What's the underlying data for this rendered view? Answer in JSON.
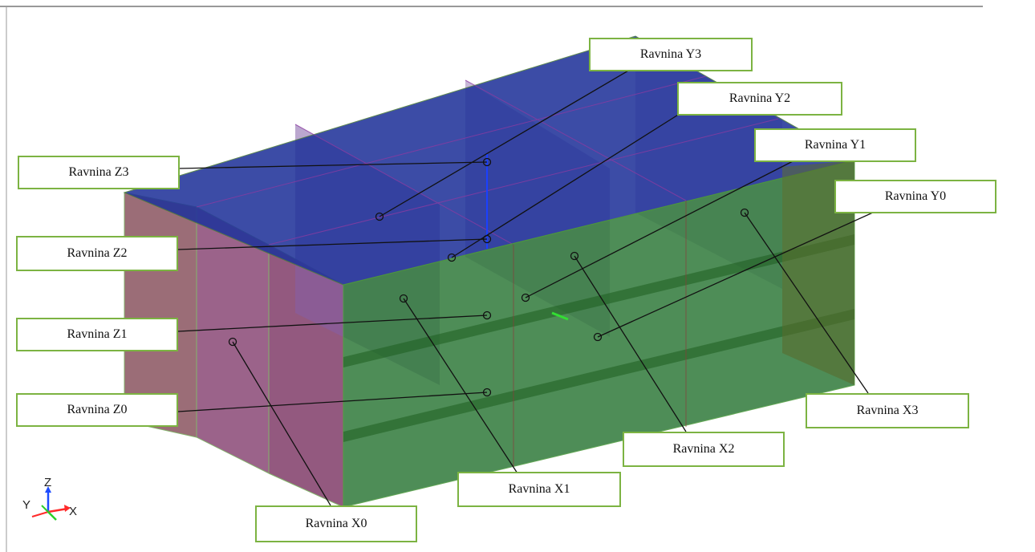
{
  "labels": {
    "y3": "Ravnina Y3",
    "y2": "Ravnina Y2",
    "y1": "Ravnina Y1",
    "y0": "Ravnina Y0",
    "z3": "Ravnina Z3",
    "z2": "Ravnina Z2",
    "z1": "Ravnina Z1",
    "z0": "Ravnina Z0",
    "x0": "Ravnina X0",
    "x1": "Ravnina X1",
    "x2": "Ravnina X2",
    "x3": "Ravnina X3"
  },
  "axis_triad": {
    "z": "Z",
    "y": "Y",
    "x": "X"
  },
  "colors": {
    "label_border": "#7cb342",
    "leader_line": "#111111",
    "z_planes": "#1e2fa0",
    "y_planes": "#1f8a2a",
    "x_planes": "#6a1f6a"
  }
}
